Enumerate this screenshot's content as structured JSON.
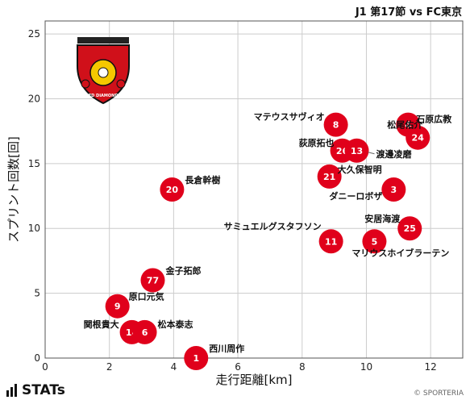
{
  "header": {
    "title": "J1 第17節 vs FC東京"
  },
  "footer": {
    "brand": "STATs",
    "copyright": "© SPORTERIA"
  },
  "colors": {
    "marker": "#e0001b",
    "grid": "#cccccc",
    "background": "#ffffff"
  },
  "logo": {
    "text": "RED DIAMONDS",
    "icon": "urawa-red-diamonds-crest"
  },
  "chart_data": {
    "type": "scatter",
    "title": "J1 第17節 vs FC東京",
    "xlabel": "走行距離[km]",
    "ylabel": "スプリント回数[回]",
    "xlim": [
      0,
      13
    ],
    "ylim": [
      0,
      26
    ],
    "xticks": [
      0,
      2,
      4,
      6,
      8,
      10,
      12
    ],
    "yticks": [
      0,
      5,
      10,
      15,
      20,
      25
    ],
    "grid": true,
    "points": [
      {
        "number": "1",
        "name": "西川周作",
        "x": 4.7,
        "y": 0
      },
      {
        "number": "14",
        "name": "関根貴大",
        "x": 2.7,
        "y": 2
      },
      {
        "number": "6",
        "name": "松本泰志",
        "x": 3.1,
        "y": 2
      },
      {
        "number": "9",
        "name": "原口元気",
        "x": 2.25,
        "y": 4
      },
      {
        "number": "77",
        "name": "金子拓郎",
        "x": 3.35,
        "y": 6
      },
      {
        "number": "20",
        "name": "長倉幹樹",
        "x": 3.95,
        "y": 13
      },
      {
        "number": "11",
        "name": "サミュエルグスタフソン",
        "x": 8.9,
        "y": 9
      },
      {
        "number": "5",
        "name": "マリウスホイブラーテン",
        "x": 10.25,
        "y": 9
      },
      {
        "number": "25",
        "name": "安居海渡",
        "x": 11.35,
        "y": 10
      },
      {
        "number": "3",
        "name": "ダニーロボザ",
        "x": 10.85,
        "y": 13
      },
      {
        "number": "21",
        "name": "大久保智明",
        "x": 8.85,
        "y": 14
      },
      {
        "number": "26",
        "name": "荻原拓也",
        "x": 9.25,
        "y": 16
      },
      {
        "number": "13",
        "name": "渡邊凌磨",
        "x": 9.7,
        "y": 16
      },
      {
        "number": "8",
        "name": "マテウスサヴィオ",
        "x": 9.05,
        "y": 18
      },
      {
        "number": "4",
        "name": "石原広教",
        "x": 11.3,
        "y": 18
      },
      {
        "number": "24",
        "name": "松尾佑介",
        "x": 11.6,
        "y": 17
      }
    ]
  }
}
